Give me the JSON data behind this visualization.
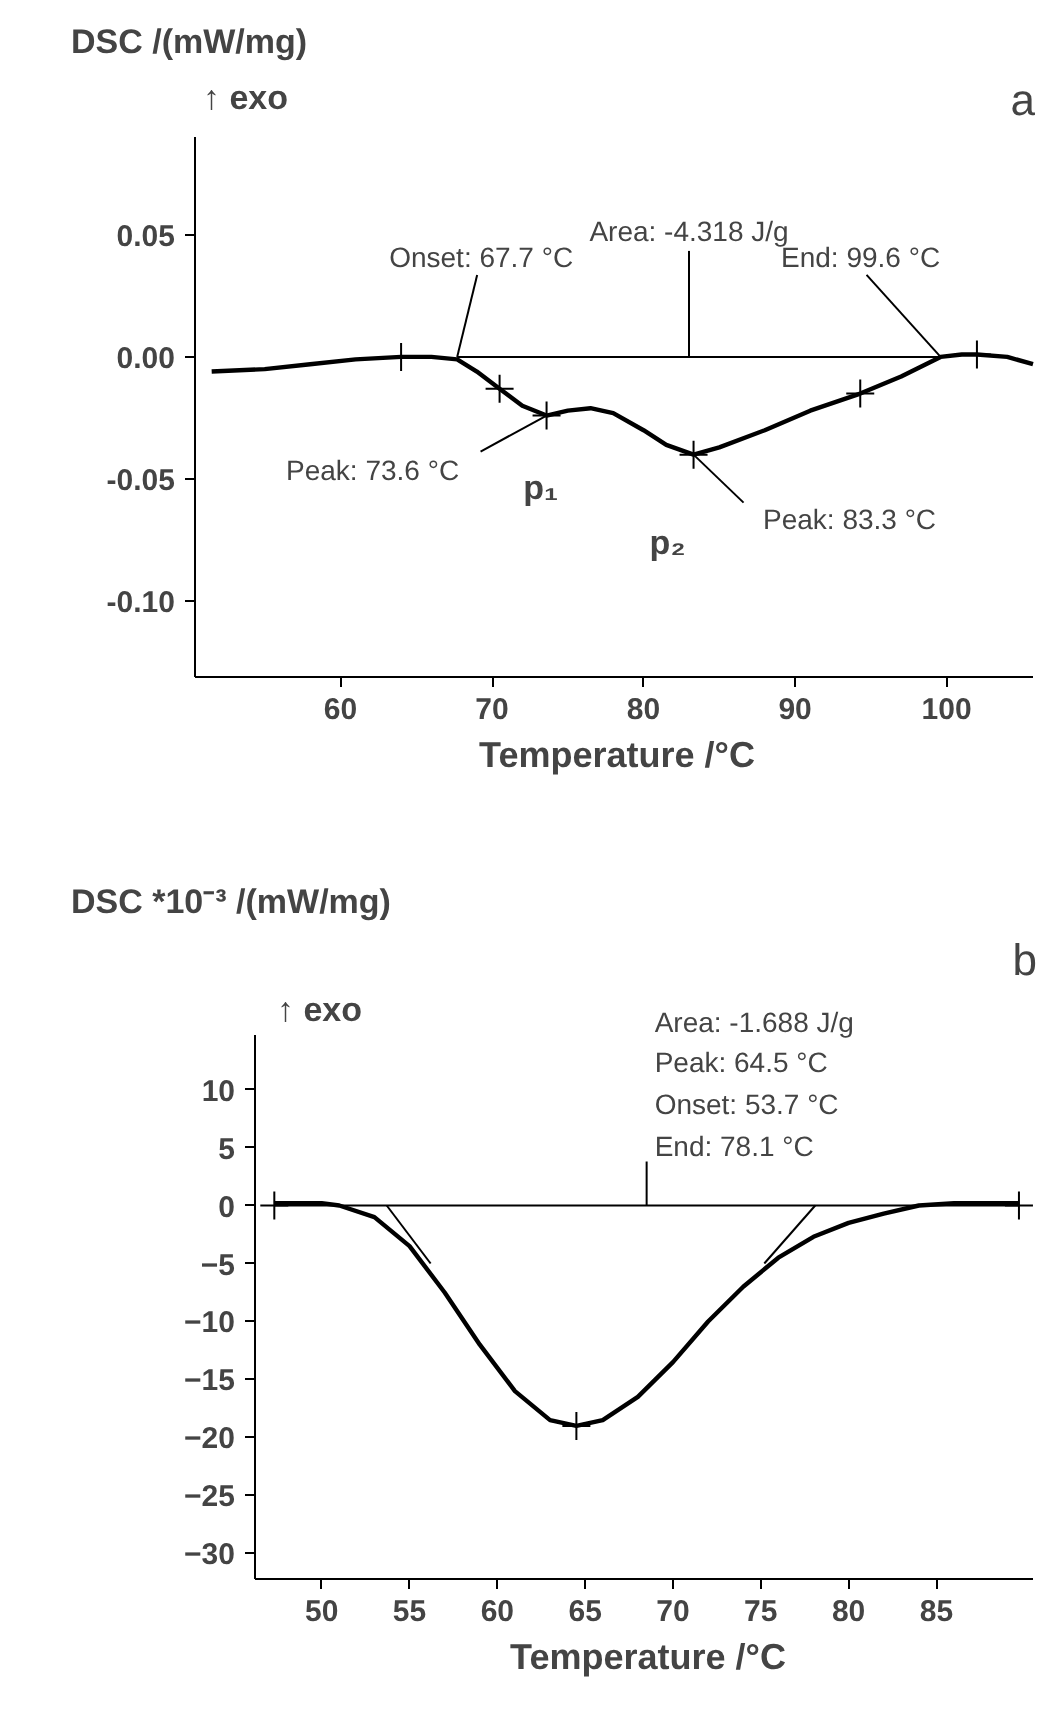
{
  "chart_data": [
    {
      "type": "line",
      "title": "a",
      "ylabel": "DSC /(mW/mg)",
      "xlabel": "Temperature /°C",
      "xlim": [
        50.4,
        105.7
      ],
      "ylim": [
        -0.131,
        0.09
      ],
      "xticks": [
        60,
        70,
        80,
        90,
        100
      ],
      "yticks": [
        {
          "value": -0.1,
          "label": "-0.10"
        },
        {
          "value": -0.05,
          "label": "-0.05"
        },
        {
          "value": 0,
          "label": "0.00"
        },
        0.05
      ],
      "grid": false,
      "series": [
        {
          "color": "#000000",
          "x": [
            51.5,
            55,
            58,
            61,
            64,
            66,
            67.7,
            69,
            70.5,
            72,
            73.6,
            75,
            76.5,
            78,
            80,
            81.5,
            83.3,
            85,
            88,
            91,
            94.3,
            97,
            99.6,
            101,
            102,
            104,
            105.7
          ],
          "values": [
            -0.006,
            -0.005,
            -0.003,
            -0.001,
            0.0,
            0.0,
            -0.001,
            -0.006,
            -0.013,
            -0.02,
            -0.024,
            -0.022,
            -0.021,
            -0.023,
            -0.03,
            -0.036,
            -0.04,
            -0.037,
            -0.03,
            -0.022,
            -0.015,
            -0.008,
            0.0,
            0.001,
            0.001,
            0.0,
            -0.003
          ]
        },
        {
          "color": "#000000",
          "x": [
            67.7,
            99.6
          ],
          "values": [
            0,
            0
          ]
        },
        {
          "type": "scatter",
          "marker": "cross",
          "color": "#000000",
          "x": [
            64,
            70.5,
            73.6,
            83.3,
            94.3,
            102
          ],
          "values": [
            0.0,
            -0.013,
            -0.024,
            -0.04,
            -0.015,
            0.001
          ]
        }
      ],
      "annotations": [
        {
          "text": "Area: -4.318 J/g",
          "x": 83,
          "y": 0
        },
        {
          "text": "Onset: 67.7 °C",
          "x": 67.7,
          "y": 0
        },
        {
          "text": "End: 99.6 °C",
          "x": 99.6,
          "y": 0
        },
        {
          "text": "Peak: 73.6 °C",
          "x": 73.6,
          "y": -0.024
        },
        {
          "text": "Peak: 83.3 °C",
          "x": 83.3,
          "y": -0.04
        },
        {
          "text": "p₁",
          "x": 73.6,
          "y": -0.024
        },
        {
          "text": "p₂",
          "x": 83.3,
          "y": -0.04
        },
        "↑ exo"
      ]
    },
    {
      "type": "line",
      "title": "b",
      "ylabel": "DSC *10⁻³ /(mW/mg)",
      "xlabel": "Temperature /°C",
      "xlim": [
        46.2,
        90.5
      ],
      "ylim": [
        -32.2,
        14.7
      ],
      "xticks": [
        50,
        55,
        60,
        65,
        70,
        75,
        80,
        85
      ],
      "yticks": [
        -30,
        -25,
        -20,
        -15,
        -10,
        -5,
        0,
        5,
        10
      ],
      "grid": false,
      "series": [
        {
          "color": "#000000",
          "x": [
            47.3,
            50,
            51,
            53,
            55,
            57,
            59,
            61,
            63,
            64.5,
            66,
            68,
            70,
            72,
            74,
            76,
            78,
            80,
            82,
            84,
            86,
            89.7
          ],
          "values": [
            0.2,
            0.2,
            0,
            -1,
            -3.5,
            -7.5,
            -12,
            -16,
            -18.5,
            -19,
            -18.5,
            -16.5,
            -13.5,
            -10,
            -7,
            -4.5,
            -2.7,
            -1.5,
            -0.7,
            0,
            0.2,
            0.2
          ]
        },
        {
          "color": "#000000",
          "x": [
            47.3,
            89.7
          ],
          "values": [
            0,
            0
          ]
        },
        {
          "color": "#000000",
          "x": [
            53.7,
            56.2
          ],
          "values": [
            0,
            -5
          ]
        },
        {
          "color": "#000000",
          "x": [
            78.1,
            75.2
          ],
          "values": [
            0,
            -5
          ]
        },
        {
          "type": "scatter",
          "marker": "cross",
          "color": "#000000",
          "x": [
            47.3,
            64.5,
            89.7
          ],
          "values": [
            0,
            -19,
            0
          ]
        }
      ],
      "annotations": [
        "Area: -1.688 J/g",
        "Peak: 64.5 °C",
        "Onset: 53.7 °C",
        {
          "text": "End: 78.1 °C",
          "x": 68.5,
          "y": 0
        },
        "↑ exo"
      ]
    }
  ]
}
